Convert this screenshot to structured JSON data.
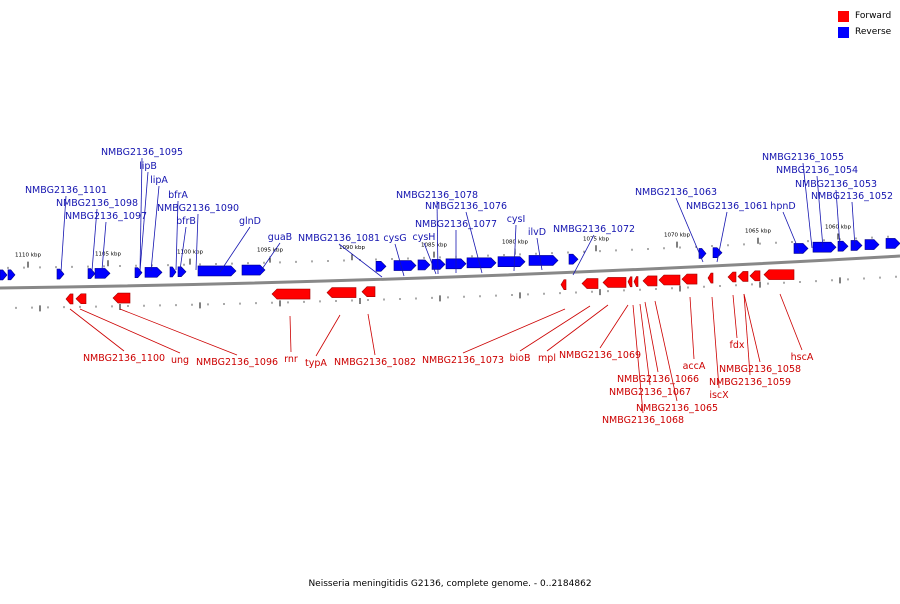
{
  "legend": {
    "forward_label": "Forward",
    "reverse_label": "Reverse",
    "forward_color": "#ff0000",
    "reverse_color": "#0000ff"
  },
  "caption": "Neisseria meningitidis G2136, complete genome. - 0..2184862",
  "colors": {
    "backbone": "#888888",
    "forward_label": "#cc0000",
    "reverse_label": "#1515b0",
    "tick": "#000000"
  },
  "scale_ticks": [
    "1110 kbp",
    "1105 kbp",
    "1100 kbp",
    "1095 kbp",
    "1090 kbp",
    "1085 kbp",
    "1080 kbp",
    "1075 kbp",
    "1070 kbp",
    "1065 kbp",
    "1060 kbp"
  ],
  "reverse_genes": [
    "NMBG2136_1101",
    "NMBG2136_1098",
    "NMBG2136_1097",
    "NMBG2136_1095",
    "lipB",
    "lipA",
    "bfrA",
    "bfrB",
    "NMBG2136_1090",
    "glnD",
    "guaB",
    "NMBG2136_1081",
    "cysG",
    "cysH",
    "NMBG2136_1078",
    "NMBG2136_1077",
    "NMBG2136_1076",
    "cysI",
    "ilvD",
    "NMBG2136_1072",
    "NMBG2136_1063",
    "NMBG2136_1061",
    "hpnD",
    "NMBG2136_1055",
    "NMBG2136_1054",
    "NMBG2136_1053",
    "NMBG2136_1052"
  ],
  "forward_genes": [
    "NMBG2136_1100",
    "ung",
    "NMBG2136_1096",
    "rnr",
    "typA",
    "NMBG2136_1082",
    "NMBG2136_1073",
    "bioB",
    "mpl",
    "NMBG2136_1069",
    "NMBG2136_1066",
    "NMBG2136_1067",
    "NMBG2136_1065",
    "NMBG2136_1068",
    "accA",
    "iscX",
    "fdx",
    "NMBG2136_1058",
    "NMBG2136_1059",
    "hscA"
  ]
}
